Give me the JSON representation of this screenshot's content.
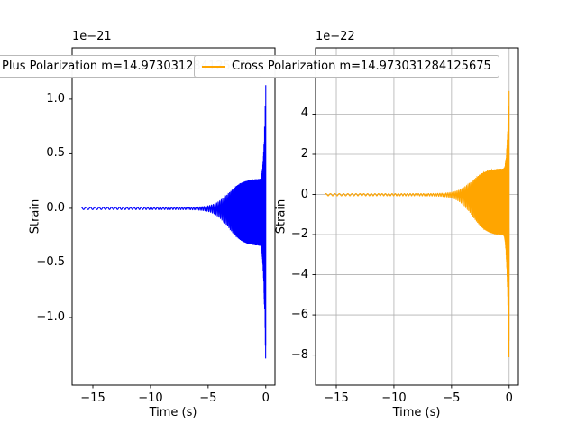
{
  "window": {
    "background": "#ffffff"
  },
  "chart_data": [
    {
      "type": "line",
      "legend_label": "Plus Polarization m=14.973031284125675",
      "offset_label": "1e−21",
      "xlabel": "Time (s)",
      "ylabel": "Strain",
      "line_color": "#0000ff",
      "xlim": [
        -16.8,
        0.8
      ],
      "ylim": [
        -1.62,
        1.47
      ],
      "xticks": [
        -15,
        -10,
        -5,
        0
      ],
      "xtick_labels": [
        "−15",
        "−10",
        "−5",
        "0"
      ],
      "yticks": [
        1.0,
        0.5,
        0.0,
        -0.5,
        -1.0
      ],
      "ytick_labels": [
        "1.0",
        "0.5",
        "0.0",
        "−0.5",
        "−1.0"
      ],
      "grid": false,
      "x_range_seconds": [
        -16,
        0
      ],
      "description": "Chirp: strain flat near 0 from t=−16 s, amplitude grows from ~t=−5 s to ~±0.3×10⁻²¹, spikes to ~+1.15/−1.47×10⁻²¹ at t≈0",
      "waveform": {
        "fn": "cos",
        "scale": 1.0,
        "pos_factor": 0.88,
        "neg_factor": 1.12
      }
    },
    {
      "type": "line",
      "legend_label": "Cross Polarization m=14.973031284125675",
      "offset_label": "1e−22",
      "xlabel": "Time (s)",
      "ylabel": "Strain",
      "line_color": "#ffa500",
      "xlim": [
        -16.8,
        0.8
      ],
      "ylim": [
        -9.5,
        7.3
      ],
      "xticks": [
        -15,
        -10,
        -5,
        0
      ],
      "xtick_labels": [
        "−15",
        "−10",
        "−5",
        "0"
      ],
      "yticks": [
        4,
        2,
        0,
        -2,
        -4,
        -6,
        -8
      ],
      "ytick_labels": [
        "4",
        "2",
        "0",
        "−2",
        "−4",
        "−6",
        "−8"
      ],
      "grid": true,
      "x_range_seconds": [
        -16,
        0
      ],
      "description": "Chirp: strain flat near 0 from t=−16 s, amplitude grows from ~t=−5 s to ~±1.5×10⁻²², spikes to ~+5.5/−8.7×10⁻²² at t≈0",
      "waveform": {
        "fn": "sin",
        "scale": 5.0,
        "pos_factor": 0.84,
        "neg_factor": 1.33
      }
    }
  ],
  "waveform_model": {
    "t_start": -16,
    "t_end": 0,
    "samples": 6000,
    "base_amp": 0.01,
    "bulge_amp": 0.3,
    "bulge_center": -3.2,
    "bulge_rate": 1.6,
    "spike_start": -0.55,
    "spike_power": 3,
    "spike_amp": 1.0,
    "f0": 2.5,
    "freq_exponent": 0.8,
    "t_merge": 0.1,
    "t_norm": 16
  }
}
